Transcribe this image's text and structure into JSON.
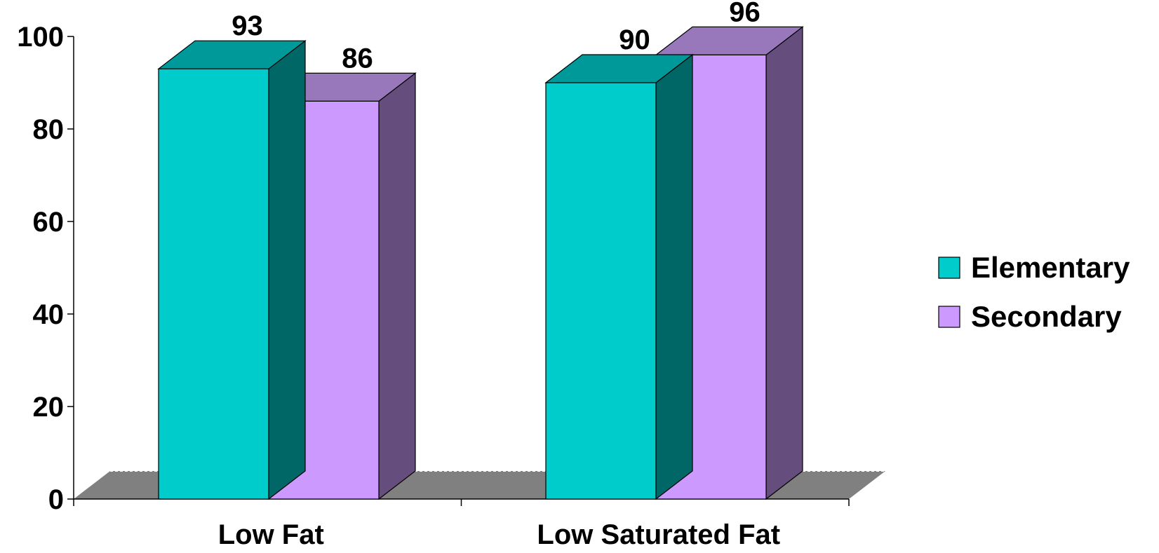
{
  "chart_data": {
    "type": "bar",
    "style": "3d-clustered-column",
    "categories": [
      "Low Fat",
      "Low Saturated Fat"
    ],
    "series": [
      {
        "name": "Elementary",
        "values": [
          93,
          90
        ],
        "color": "#00CCCC",
        "top_color": "#009999",
        "side_color": "#006666"
      },
      {
        "name": "Secondary",
        "values": [
          86,
          96
        ],
        "color": "#CC99FF",
        "top_color": "#9977BB",
        "side_color": "#654E7D"
      }
    ],
    "title": "",
    "xlabel": "",
    "ylabel": "",
    "ylim": [
      0,
      100
    ],
    "yticks": [
      "0",
      "20",
      "40",
      "60",
      "80",
      "100"
    ],
    "data_labels": true,
    "grid": false,
    "legend_position": "right",
    "floor_color": "#808080"
  }
}
